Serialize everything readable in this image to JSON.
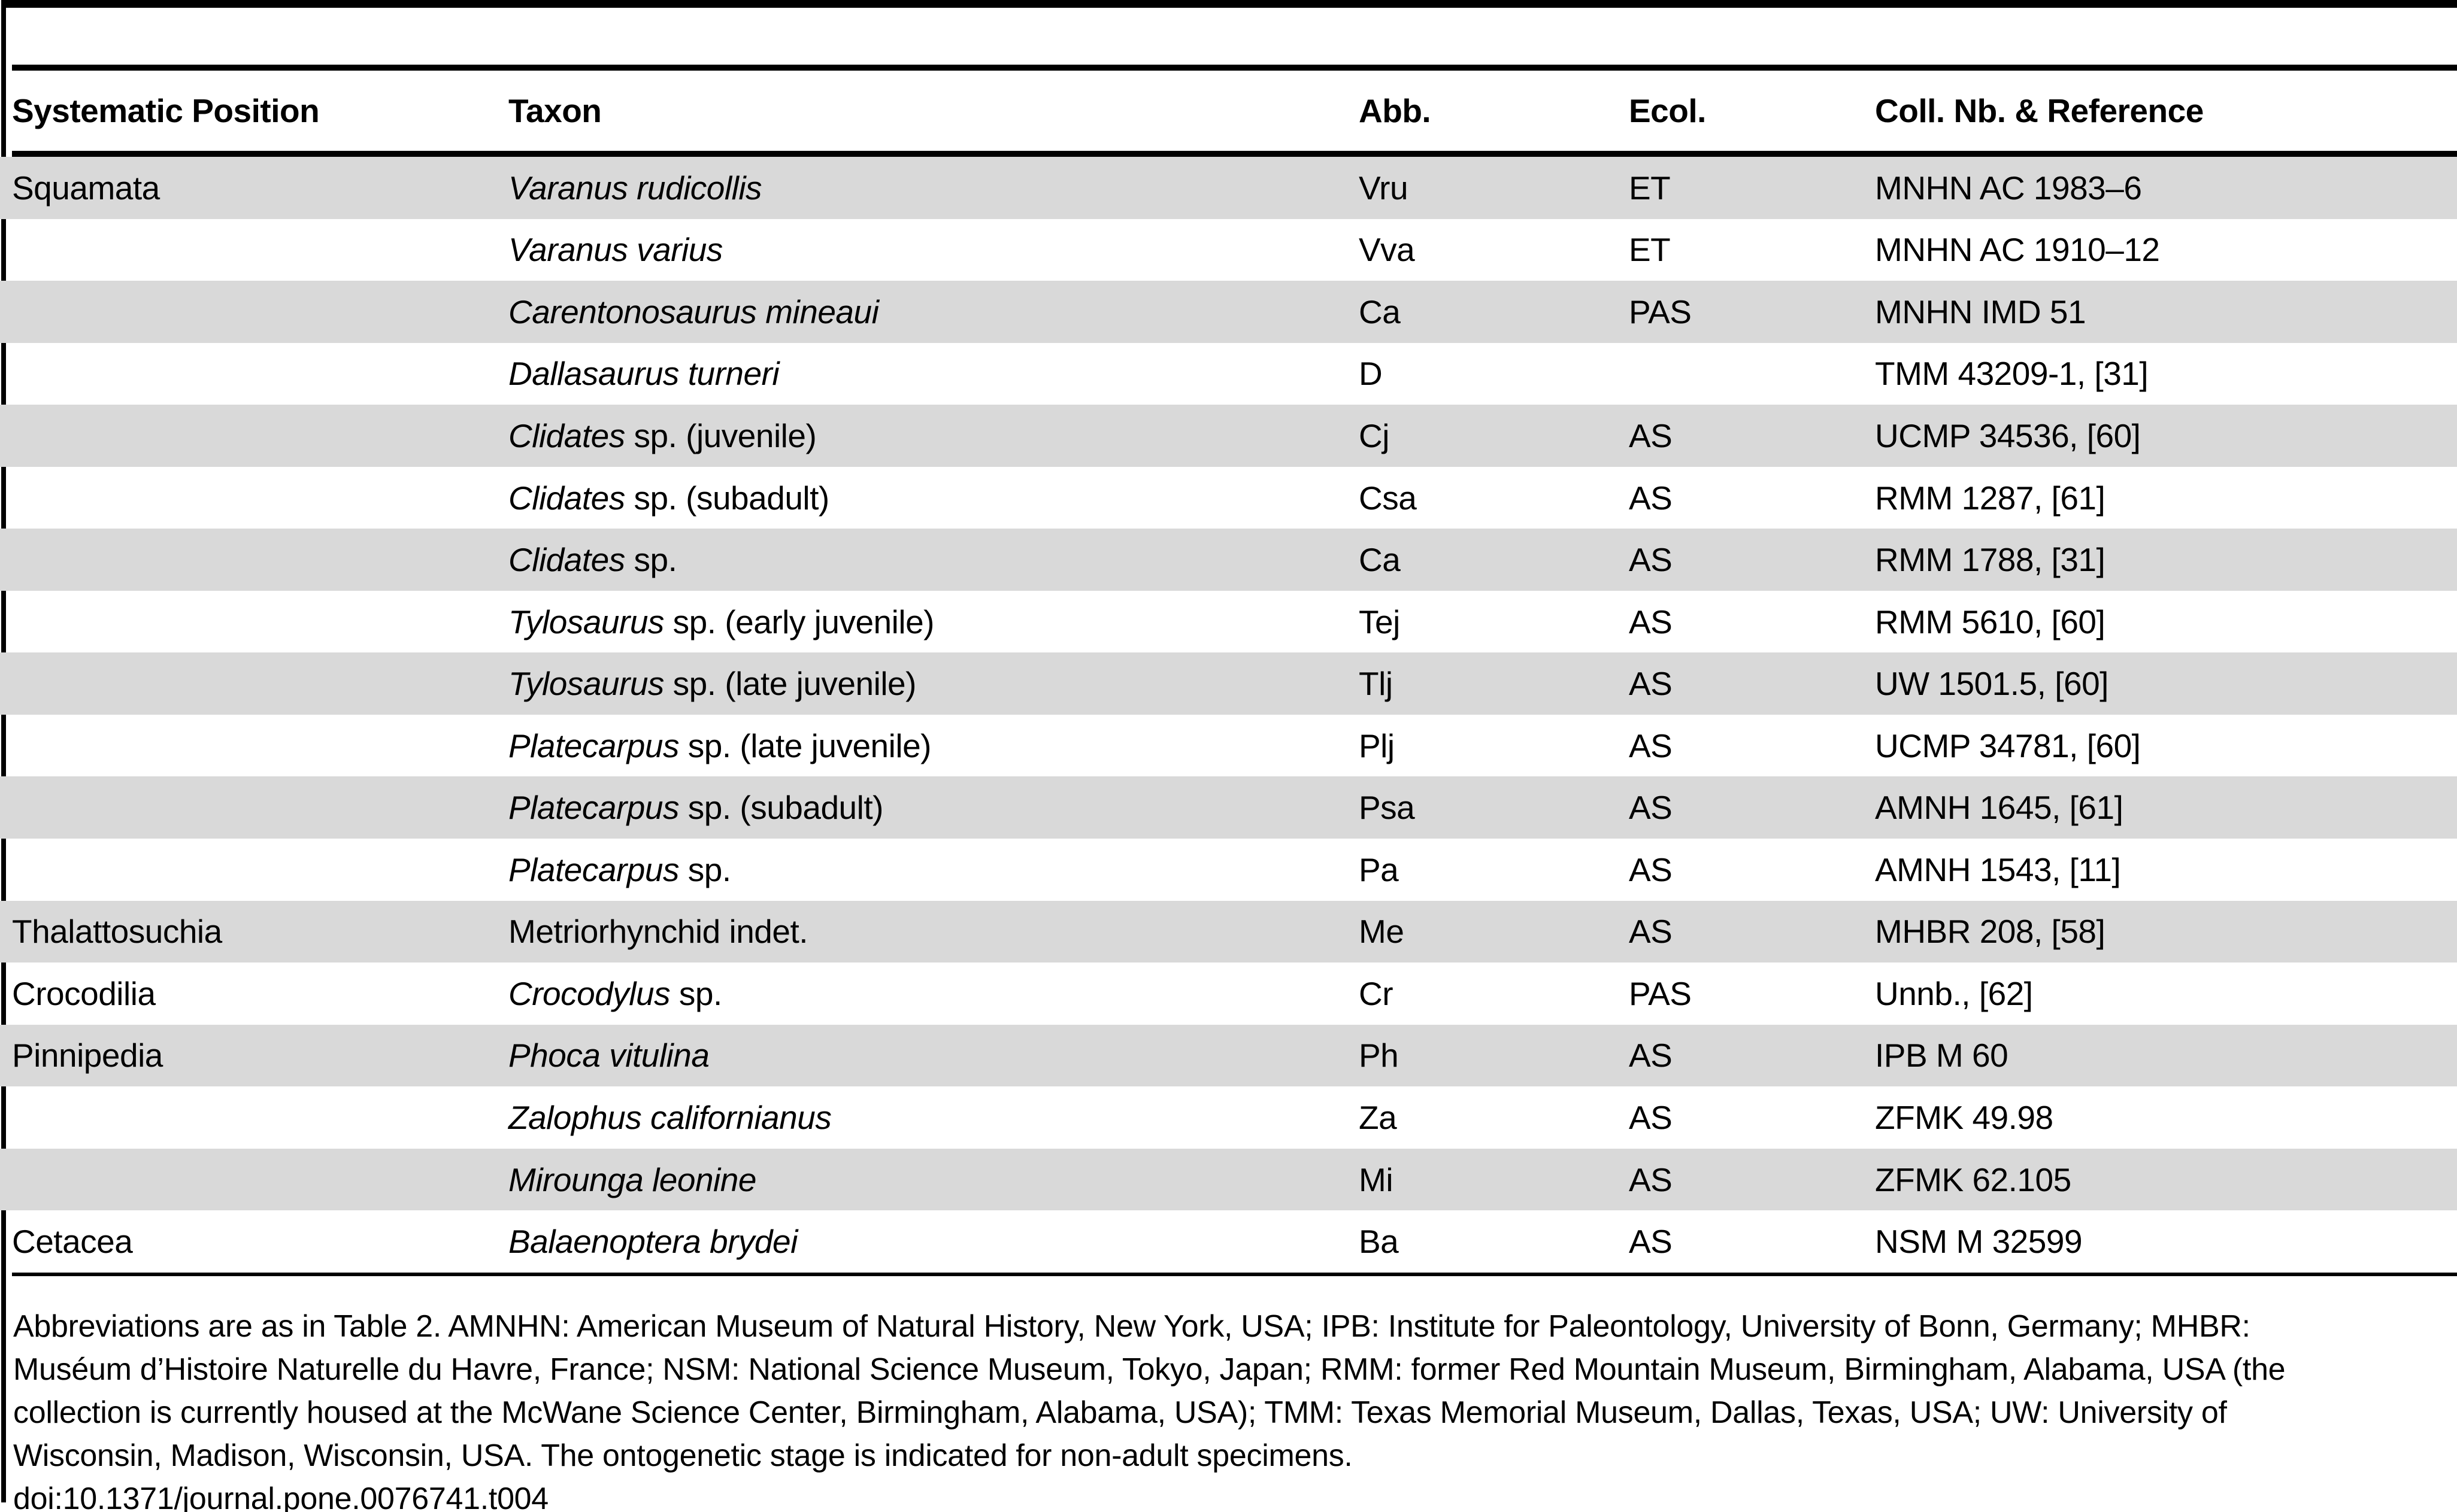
{
  "colors": {
    "row_shade": "#d9d9d9",
    "rule": "#000000",
    "background": "#ffffff"
  },
  "table": {
    "columns": [
      "Systematic Position",
      "Taxon",
      "Abb.",
      "Ecol.",
      "Coll. Nb. & Reference"
    ],
    "rows": [
      {
        "position": "Squamata",
        "taxon_italic": "Varanus rudicollis",
        "taxon_roman": "",
        "abb": "Vru",
        "ecol": "ET",
        "coll": "MNHN AC 1983–6",
        "shaded": true
      },
      {
        "position": "",
        "taxon_italic": "Varanus varius",
        "taxon_roman": "",
        "abb": "Vva",
        "ecol": "ET",
        "coll": "MNHN AC 1910–12",
        "shaded": false
      },
      {
        "position": "",
        "taxon_italic": "Carentonosaurus mineaui",
        "taxon_roman": "",
        "abb": "Ca",
        "ecol": "PAS",
        "coll": "MNHN IMD 51",
        "shaded": true
      },
      {
        "position": "",
        "taxon_italic": "Dallasaurus turneri",
        "taxon_roman": "",
        "abb": "D",
        "ecol": "",
        "coll": "TMM 43209-1, [31]",
        "shaded": false
      },
      {
        "position": "",
        "taxon_italic": "Clidates",
        "taxon_roman": " sp. (juvenile)",
        "abb": "Cj",
        "ecol": "AS",
        "coll": "UCMP 34536, [60]",
        "shaded": true
      },
      {
        "position": "",
        "taxon_italic": "Clidates",
        "taxon_roman": " sp. (subadult)",
        "abb": "Csa",
        "ecol": "AS",
        "coll": "RMM 1287, [61]",
        "shaded": false
      },
      {
        "position": "",
        "taxon_italic": "Clidates",
        "taxon_roman": " sp.",
        "abb": "Ca",
        "ecol": "AS",
        "coll": "RMM 1788, [31]",
        "shaded": true
      },
      {
        "position": "",
        "taxon_italic": "Tylosaurus",
        "taxon_roman": " sp. (early juvenile)",
        "abb": "Tej",
        "ecol": "AS",
        "coll": "RMM 5610, [60]",
        "shaded": false
      },
      {
        "position": "",
        "taxon_italic": "Tylosaurus",
        "taxon_roman": " sp. (late juvenile)",
        "abb": "Tlj",
        "ecol": "AS",
        "coll": "UW 1501.5, [60]",
        "shaded": true
      },
      {
        "position": "",
        "taxon_italic": "Platecarpus",
        "taxon_roman": " sp. (late juvenile)",
        "abb": "Plj",
        "ecol": "AS",
        "coll": "UCMP 34781, [60]",
        "shaded": false
      },
      {
        "position": "",
        "taxon_italic": "Platecarpus",
        "taxon_roman": " sp. (subadult)",
        "abb": "Psa",
        "ecol": "AS",
        "coll": "AMNH 1645, [61]",
        "shaded": true
      },
      {
        "position": "",
        "taxon_italic": "Platecarpus",
        "taxon_roman": " sp.",
        "abb": "Pa",
        "ecol": "AS",
        "coll": "AMNH 1543, [11]",
        "shaded": false
      },
      {
        "position": "Thalattosuchia",
        "taxon_italic": "",
        "taxon_roman": "Metriorhynchid indet.",
        "abb": "Me",
        "ecol": "AS",
        "coll": "MHBR 208, [58]",
        "shaded": true
      },
      {
        "position": "Crocodilia",
        "taxon_italic": "Crocodylus",
        "taxon_roman": " sp.",
        "abb": "Cr",
        "ecol": "PAS",
        "coll": "Unnb., [62]",
        "shaded": false
      },
      {
        "position": "Pinnipedia",
        "taxon_italic": "Phoca vitulina",
        "taxon_roman": "",
        "abb": "Ph",
        "ecol": "AS",
        "coll": "IPB M 60",
        "shaded": true
      },
      {
        "position": "",
        "taxon_italic": "Zalophus californianus",
        "taxon_roman": "",
        "abb": "Za",
        "ecol": "AS",
        "coll": "ZFMK 49.98",
        "shaded": false
      },
      {
        "position": "",
        "taxon_italic": "Mirounga leonine",
        "taxon_roman": "",
        "abb": "Mi",
        "ecol": "AS",
        "coll": "ZFMK 62.105",
        "shaded": true
      },
      {
        "position": "Cetacea",
        "taxon_italic": "Balaenoptera brydei",
        "taxon_roman": "",
        "abb": "Ba",
        "ecol": "AS",
        "coll": "NSM M 32599",
        "shaded": false
      }
    ]
  },
  "footnote": {
    "lines": [
      "Abbreviations are as in Table 2. AMNHN: American Museum of Natural History, New York, USA; IPB: Institute for Paleontology, University of Bonn, Germany; MHBR:",
      "Muséum d’Histoire Naturelle du Havre, France; NSM: National Science Museum, Tokyo, Japan; RMM: former Red Mountain Museum, Birmingham, Alabama, USA (the",
      "collection is currently housed at the McWane Science Center, Birmingham, Alabama, USA); TMM: Texas Memorial Museum, Dallas, Texas, USA; UW: University of",
      "Wisconsin, Madison, Wisconsin, USA. The ontogenetic stage is indicated for non-adult specimens.",
      "doi:10.1371/journal.pone.0076741.t004"
    ]
  }
}
